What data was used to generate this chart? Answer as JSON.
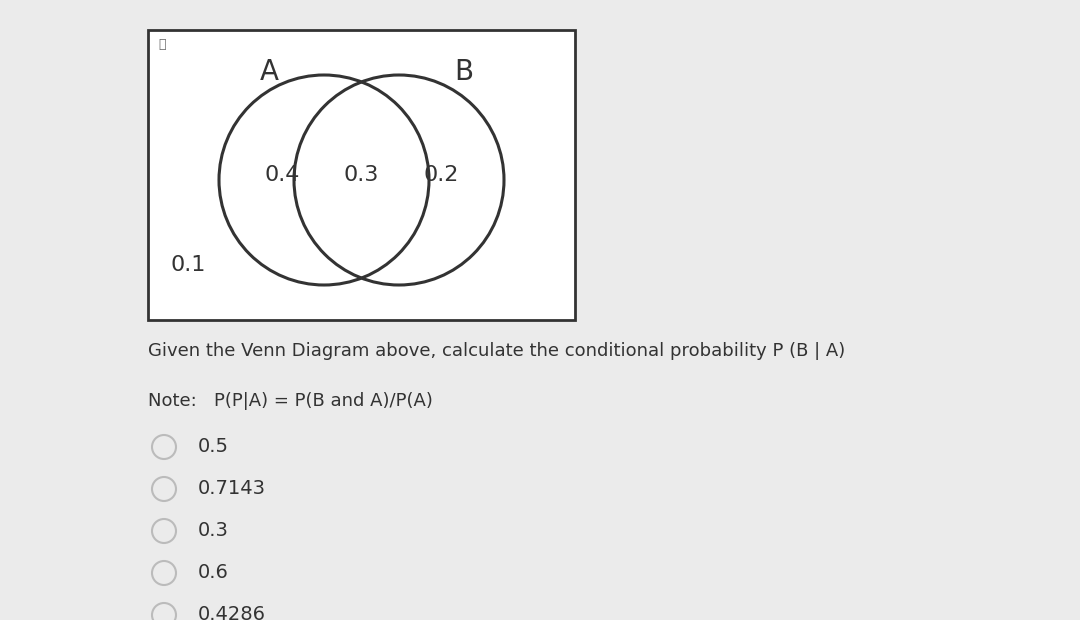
{
  "bg_color": "#ebebeb",
  "venn_box_bg": "#ffffff",
  "venn_border_color": "#333333",
  "circle_color": "#333333",
  "circle_lw": 2.2,
  "label_A": "A",
  "label_B": "B",
  "val_only_A": "0.4",
  "val_intersection": "0.3",
  "val_only_B": "0.2",
  "val_outside": "0.1",
  "question_text": "Given the Venn Diagram above, calculate the conditional probability P (B | A)",
  "note_text": "Note:   P(P|A) = P(B and A)/P(A)",
  "choices": [
    "0.5",
    "0.7143",
    "0.3",
    "0.6",
    "0.4286"
  ],
  "radio_color": "#bbbbbb",
  "text_color": "#333333",
  "font_size_labels": 18,
  "font_size_values": 15,
  "font_size_question": 13,
  "font_size_note": 13,
  "font_size_choices": 14
}
